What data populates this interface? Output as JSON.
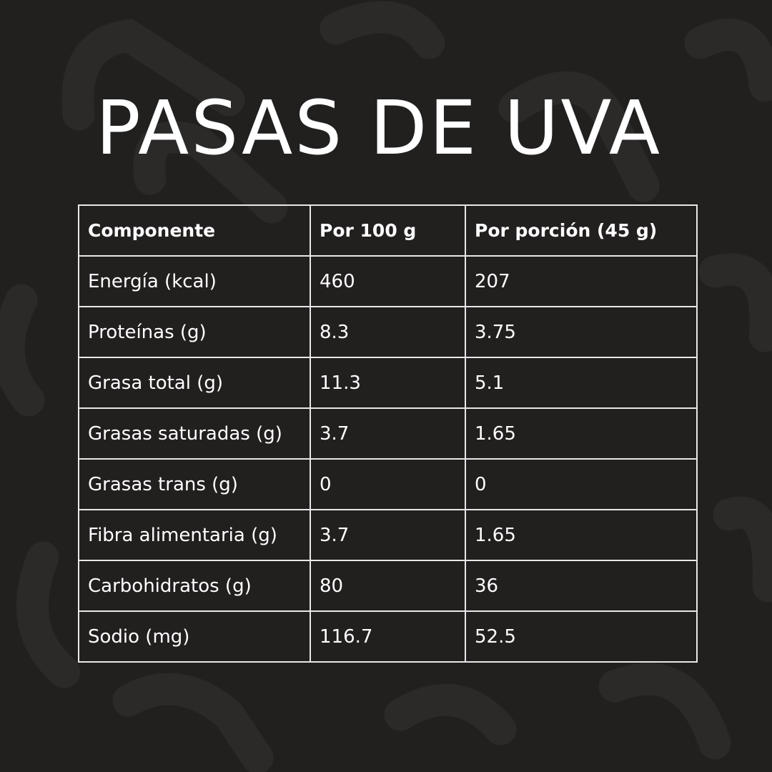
{
  "title": "PASAS DE UVA",
  "colors": {
    "background": "#221f1f",
    "pattern": "#2c2a29",
    "text": "#ffffff",
    "grid": "#e8e8e8"
  },
  "table": {
    "headers": [
      "Componente",
      "Por 100 g",
      "Por porción (45 g)"
    ],
    "rows": [
      [
        "Energía (kcal)",
        "460",
        "207"
      ],
      [
        "Proteínas (g)",
        "8.3",
        "3.75"
      ],
      [
        "Grasa total (g)",
        "11.3",
        "5.1"
      ],
      [
        "Grasas saturadas (g)",
        "3.7",
        "1.65"
      ],
      [
        "Grasas trans (g)",
        "0",
        "0"
      ],
      [
        "Fibra alimentaria (g)",
        "3.7",
        "1.65"
      ],
      [
        "Carbohidratos (g)",
        "80",
        "36"
      ],
      [
        "Sodio (mg)",
        "116.7",
        "52.5"
      ]
    ]
  }
}
